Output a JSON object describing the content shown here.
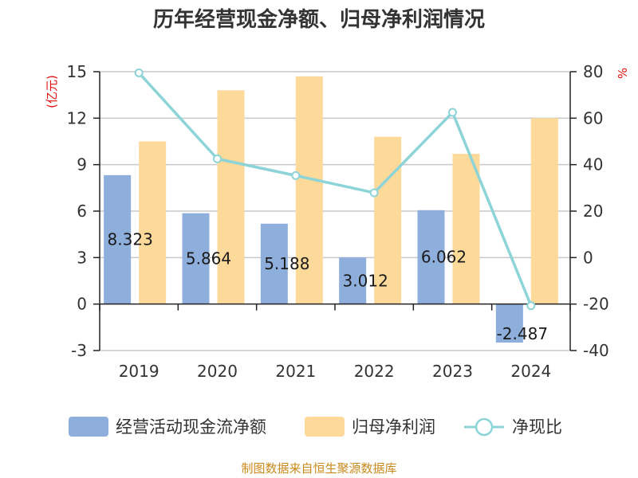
{
  "chart_data": {
    "type": "bar+line",
    "title": "历年经营现金净额、归母净利润情况",
    "categories": [
      "2019",
      "2020",
      "2021",
      "2022",
      "2023",
      "2024"
    ],
    "series": [
      {
        "name": "经营活动现金流净额",
        "type": "bar",
        "axis": "left",
        "color": "#8eaedc",
        "values": [
          8.323,
          5.864,
          5.188,
          3.012,
          6.062,
          -2.487
        ],
        "labels": [
          "8.323",
          "5.864",
          "5.188",
          "3.012",
          "6.062",
          "-2.487"
        ]
      },
      {
        "name": "归母净利润",
        "type": "bar",
        "axis": "left",
        "color": "#fdd99a",
        "values": [
          10.5,
          13.8,
          14.7,
          10.8,
          9.7,
          12.0
        ]
      },
      {
        "name": "净现比",
        "type": "line",
        "axis": "right",
        "color": "#8cd4d8",
        "values": [
          79.5,
          42.5,
          35.3,
          27.9,
          62.5,
          -20.7
        ]
      }
    ],
    "y_left": {
      "unit": "(亿元)",
      "ticks": [
        15,
        12,
        9,
        6,
        3,
        0,
        -3
      ],
      "range": [
        -3,
        15
      ]
    },
    "y_right": {
      "unit": "%",
      "ticks": [
        80,
        60,
        40,
        20,
        0,
        -20,
        -40
      ],
      "range": [
        -40,
        80
      ]
    },
    "grid": true,
    "legend_position": "bottom",
    "legend": [
      "经营活动现金流净额",
      "归母净利润",
      "净现比"
    ],
    "source": "制图数据来自恒生聚源数据库"
  }
}
